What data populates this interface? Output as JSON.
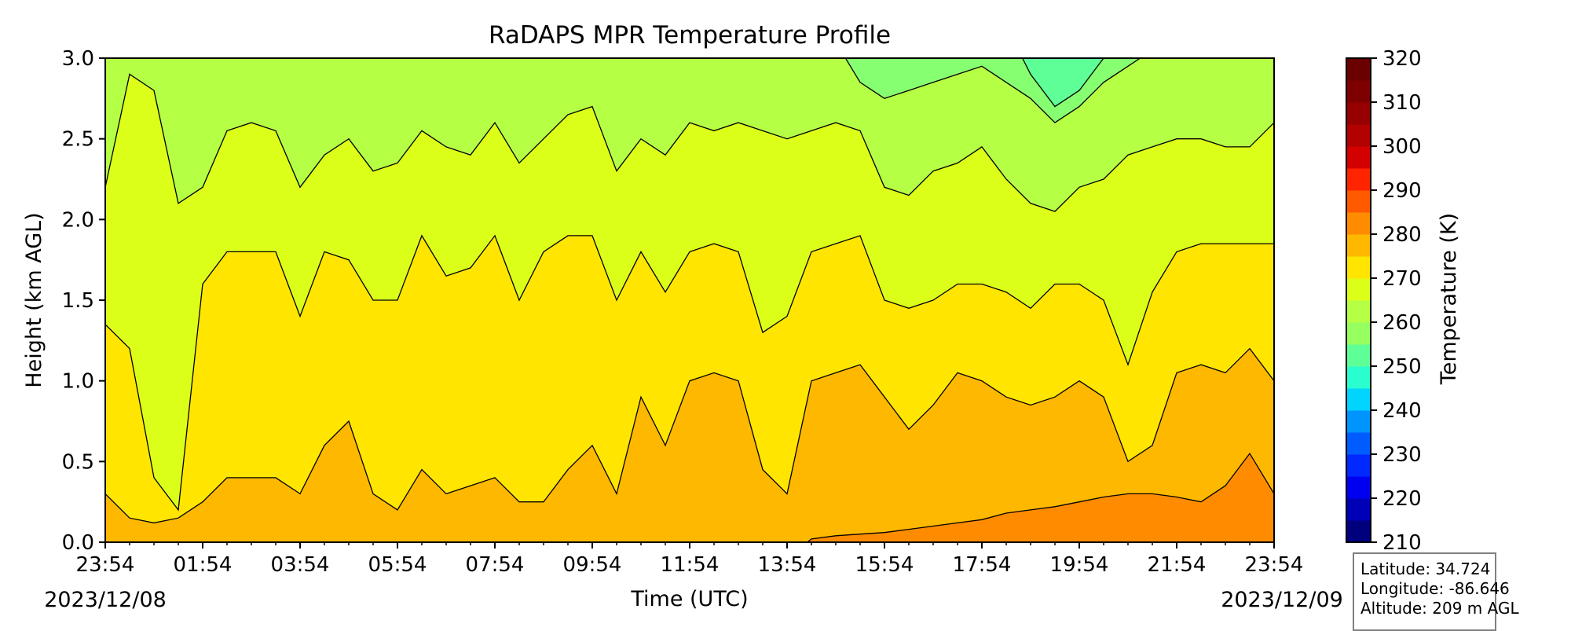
{
  "chart_data": {
    "type": "heatmap",
    "subtype": "filled contour (time-height cross section)",
    "title": "RaDAPS MPR Temperature Profile",
    "xlabel": "Time (UTC)",
    "ylabel": "Height (km AGL)",
    "x_ticks": [
      "23:54",
      "01:54",
      "03:54",
      "05:54",
      "07:54",
      "09:54",
      "11:54",
      "13:54",
      "15:54",
      "17:54",
      "19:54",
      "21:54",
      "23:54"
    ],
    "x_start_date": "2023/12/08",
    "x_end_date": "2023/12/09",
    "y_ticks": [
      "0.0",
      "0.5",
      "1.0",
      "1.5",
      "2.0",
      "2.5",
      "3.0"
    ],
    "ylim": [
      0.0,
      3.0
    ],
    "colorbar": {
      "label": "Temperature (K)",
      "ticks": [
        "210",
        "220",
        "230",
        "240",
        "250",
        "260",
        "270",
        "280",
        "290",
        "300",
        "310",
        "320"
      ],
      "range": [
        210,
        320
      ],
      "step": 5,
      "colors": [
        "#00007f",
        "#0000b6",
        "#0000f1",
        "#0028ff",
        "#005cff",
        "#0094ff",
        "#00d4ff",
        "#29ffce",
        "#5fff97",
        "#97ff5f",
        "#ceff29",
        "#ffe500",
        "#ffaa00",
        "#ff8a00",
        "#ff5100",
        "#ff1800",
        "#d40000",
        "#960000",
        "#7f0000",
        "#600000",
        "#4a0000",
        "#300000"
      ],
      "visible_colors": [
        "#00007f",
        "#0000b6",
        "#0000f1",
        "#0028ff",
        "#005cff",
        "#0094ff",
        "#00d4ff",
        "#29ffce",
        "#5fff97",
        "#97ff5f",
        "#b5ff45",
        "#dcff1a",
        "#ffe500",
        "#ffb800",
        "#ff8c00",
        "#ff5a00",
        "#ff2400",
        "#d40000",
        "#b30000",
        "#960000",
        "#7f0000",
        "#6a0000"
      ]
    },
    "field_bands_K": [
      {
        "level": "265-270",
        "color": "#86ff70"
      },
      {
        "level": "270-275",
        "color": "#b5ff45"
      },
      {
        "level": "275-280",
        "color": "#dcff1a"
      },
      {
        "level": "280-285",
        "color": "#ffe500"
      },
      {
        "level": "285-290",
        "color": "#ffb800"
      },
      {
        "level": "290-295",
        "color": "#ff8c00"
      }
    ],
    "contour_heights_km": {
      "hours_since_start": [
        0,
        0.5,
        1,
        1.5,
        2,
        2.5,
        3,
        3.5,
        4,
        4.5,
        5,
        5.5,
        6,
        6.5,
        7,
        7.5,
        8,
        8.5,
        9,
        9.5,
        10,
        10.5,
        11,
        11.5,
        12,
        12.5,
        13,
        13.5,
        14,
        14.5,
        15,
        15.5,
        16,
        16.5,
        17,
        17.5,
        18,
        18.5,
        19,
        19.5,
        20,
        20.5,
        21,
        21.5,
        22,
        22.5,
        23,
        23.5,
        24
      ],
      "level_285": [
        0.3,
        0.15,
        0.12,
        0.15,
        0.25,
        0.4,
        0.4,
        0.4,
        0.3,
        0.6,
        0.75,
        0.3,
        0.2,
        0.45,
        0.3,
        0.35,
        0.4,
        0.25,
        0.25,
        0.45,
        0.6,
        0.3,
        0.9,
        0.6,
        1.0,
        1.05,
        1.0,
        0.45,
        0.3,
        1.0,
        1.05,
        1.1,
        0.9,
        0.7,
        0.85,
        1.05,
        1.0,
        0.9,
        0.85,
        0.9,
        1.0,
        0.9,
        0.5,
        0.6,
        1.05,
        1.1,
        1.05,
        1.2,
        1.0
      ],
      "level_280": [
        1.35,
        1.2,
        0.4,
        0.2,
        1.6,
        1.8,
        1.8,
        1.8,
        1.4,
        1.8,
        1.75,
        1.5,
        1.5,
        1.9,
        1.65,
        1.7,
        1.9,
        1.5,
        1.8,
        1.9,
        1.9,
        1.5,
        1.8,
        1.55,
        1.8,
        1.85,
        1.8,
        1.3,
        1.4,
        1.8,
        1.85,
        1.9,
        1.5,
        1.45,
        1.5,
        1.6,
        1.6,
        1.55,
        1.45,
        1.6,
        1.6,
        1.5,
        1.1,
        1.55,
        1.8,
        1.85,
        1.85,
        1.85,
        1.85
      ],
      "level_275": [
        2.2,
        2.9,
        2.8,
        2.1,
        2.2,
        2.55,
        2.6,
        2.55,
        2.2,
        2.4,
        2.5,
        2.3,
        2.35,
        2.55,
        2.45,
        2.4,
        2.6,
        2.35,
        2.5,
        2.65,
        2.7,
        2.3,
        2.5,
        2.4,
        2.6,
        2.55,
        2.6,
        2.55,
        2.5,
        2.55,
        2.6,
        2.55,
        2.2,
        2.15,
        2.3,
        2.35,
        2.45,
        2.25,
        2.1,
        2.05,
        2.2,
        2.25,
        2.4,
        2.45,
        2.5,
        2.5,
        2.45,
        2.45,
        2.6
      ],
      "level_270": [
        3.1,
        3.1,
        3.1,
        3.1,
        3.1,
        3.1,
        3.1,
        3.1,
        3.1,
        3.1,
        3.1,
        3.1,
        3.1,
        3.1,
        3.1,
        3.1,
        3.1,
        3.1,
        3.1,
        3.1,
        3.1,
        3.1,
        3.1,
        3.1,
        3.1,
        3.1,
        3.1,
        3.1,
        3.1,
        3.1,
        3.1,
        2.85,
        2.75,
        2.8,
        2.85,
        2.9,
        2.95,
        2.85,
        2.75,
        2.6,
        2.7,
        2.85,
        2.95,
        3.05,
        3.1,
        3.1,
        3.1,
        3.1,
        3.1
      ],
      "level_265": [
        3.2,
        3.2,
        3.2,
        3.2,
        3.2,
        3.2,
        3.2,
        3.2,
        3.2,
        3.2,
        3.2,
        3.2,
        3.2,
        3.2,
        3.2,
        3.2,
        3.2,
        3.2,
        3.2,
        3.2,
        3.2,
        3.2,
        3.2,
        3.2,
        3.2,
        3.2,
        3.2,
        3.2,
        3.2,
        3.2,
        3.2,
        3.2,
        3.2,
        3.2,
        3.2,
        3.2,
        3.2,
        3.2,
        2.9,
        2.7,
        2.8,
        3.0,
        3.2,
        3.2,
        3.2,
        3.2,
        3.2,
        3.2,
        3.2
      ],
      "level_290": [
        -0.1,
        -0.1,
        -0.1,
        -0.1,
        -0.1,
        -0.1,
        -0.1,
        -0.1,
        -0.1,
        -0.1,
        -0.1,
        -0.1,
        -0.1,
        -0.1,
        -0.1,
        -0.1,
        -0.1,
        -0.1,
        -0.1,
        -0.1,
        -0.1,
        -0.1,
        -0.1,
        -0.1,
        -0.1,
        -0.1,
        -0.1,
        -0.1,
        -0.1,
        0.02,
        0.04,
        0.05,
        0.06,
        0.08,
        0.1,
        0.12,
        0.14,
        0.18,
        0.2,
        0.22,
        0.25,
        0.28,
        0.3,
        0.3,
        0.28,
        0.25,
        0.35,
        0.55,
        0.3
      ]
    }
  },
  "info_box": {
    "latitude": "Latitude: 34.724",
    "longitude": "Longitude: -86.646",
    "altitude": "Altitude: 209 m AGL"
  }
}
